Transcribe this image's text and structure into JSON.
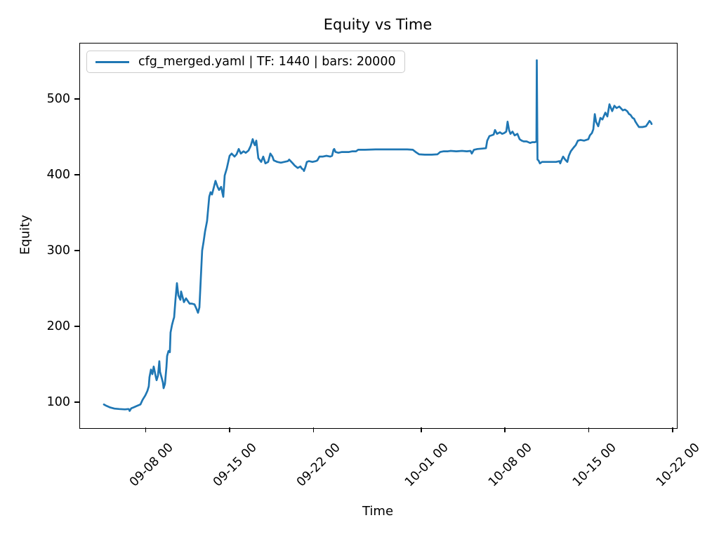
{
  "figure": {
    "title": "Equity vs Time",
    "xlabel": "Time",
    "ylabel": "Equity",
    "legend": {
      "label": "cfg_merged.yaml | TF: 1440 | bars: 20000"
    }
  },
  "chart_data": {
    "type": "line",
    "title": "Equity vs Time",
    "xlabel": "Time",
    "ylabel": "Equity",
    "grid": false,
    "legend_position": "upper left",
    "line_color": "#1f77b4",
    "x_units": "days (0 = first data point, approx 09-04 12:00)",
    "xlim": [
      -2.05,
      47.8
    ],
    "ylim": [
      66.7,
      574.1
    ],
    "x_ticks": [
      {
        "t": 3.5,
        "label": "09-08 00"
      },
      {
        "t": 10.5,
        "label": "09-15 00"
      },
      {
        "t": 17.5,
        "label": "09-22 00"
      },
      {
        "t": 26.5,
        "label": "10-01 00"
      },
      {
        "t": 33.5,
        "label": "10-08 00"
      },
      {
        "t": 40.5,
        "label": "10-15 00"
      },
      {
        "t": 47.5,
        "label": "10-22 00"
      }
    ],
    "y_ticks": [
      100,
      200,
      300,
      400,
      500
    ],
    "series": [
      {
        "name": "cfg_merged.yaml | TF: 1440 | bars: 20000",
        "color": "#1f77b4",
        "points": [
          [
            0.0,
            97
          ],
          [
            0.12,
            96
          ],
          [
            0.23,
            95
          ],
          [
            0.53,
            93
          ],
          [
            0.88,
            91.5
          ],
          [
            1.29,
            91
          ],
          [
            1.76,
            90.5
          ],
          [
            2.05,
            91
          ],
          [
            2.11,
            90.5
          ],
          [
            2.15,
            88.5
          ],
          [
            2.29,
            92
          ],
          [
            2.46,
            93
          ],
          [
            2.76,
            95
          ],
          [
            3.05,
            97
          ],
          [
            3.23,
            103
          ],
          [
            3.46,
            109
          ],
          [
            3.64,
            115
          ],
          [
            3.75,
            121
          ],
          [
            3.81,
            133
          ],
          [
            3.93,
            143
          ],
          [
            4.05,
            137
          ],
          [
            4.16,
            147
          ],
          [
            4.34,
            133
          ],
          [
            4.4,
            129
          ],
          [
            4.52,
            135
          ],
          [
            4.63,
            154
          ],
          [
            4.69,
            140
          ],
          [
            4.81,
            133
          ],
          [
            4.93,
            126
          ],
          [
            4.99,
            118.5
          ],
          [
            5.1,
            124
          ],
          [
            5.22,
            146
          ],
          [
            5.28,
            161
          ],
          [
            5.4,
            167.5
          ],
          [
            5.51,
            166
          ],
          [
            5.57,
            192
          ],
          [
            5.69,
            202
          ],
          [
            5.81,
            209
          ],
          [
            5.87,
            212
          ],
          [
            5.98,
            235
          ],
          [
            6.1,
            257
          ],
          [
            6.22,
            241
          ],
          [
            6.39,
            235
          ],
          [
            6.45,
            246
          ],
          [
            6.69,
            232
          ],
          [
            6.86,
            237
          ],
          [
            7.16,
            230
          ],
          [
            7.33,
            230
          ],
          [
            7.57,
            229
          ],
          [
            7.74,
            223
          ],
          [
            7.86,
            218
          ],
          [
            7.98,
            225
          ],
          [
            8.15,
            281
          ],
          [
            8.21,
            300
          ],
          [
            8.33,
            312
          ],
          [
            8.45,
            325
          ],
          [
            8.62,
            339
          ],
          [
            8.8,
            371
          ],
          [
            8.91,
            377
          ],
          [
            9.03,
            374
          ],
          [
            9.21,
            385
          ],
          [
            9.32,
            392
          ],
          [
            9.5,
            384
          ],
          [
            9.62,
            380
          ],
          [
            9.79,
            384
          ],
          [
            9.97,
            371
          ],
          [
            10.09,
            399
          ],
          [
            10.26,
            408
          ],
          [
            10.5,
            425
          ],
          [
            10.67,
            428
          ],
          [
            10.91,
            424
          ],
          [
            11.08,
            427
          ],
          [
            11.26,
            434
          ],
          [
            11.44,
            428
          ],
          [
            11.67,
            431
          ],
          [
            11.85,
            429
          ],
          [
            12.08,
            432
          ],
          [
            12.26,
            438
          ],
          [
            12.43,
            447
          ],
          [
            12.55,
            441
          ],
          [
            12.61,
            439
          ],
          [
            12.73,
            445
          ],
          [
            12.9,
            422
          ],
          [
            13.14,
            417
          ],
          [
            13.31,
            424
          ],
          [
            13.49,
            415
          ],
          [
            13.72,
            417
          ],
          [
            13.9,
            428
          ],
          [
            14.08,
            424
          ],
          [
            14.19,
            419
          ],
          [
            14.49,
            417
          ],
          [
            14.78,
            416
          ],
          [
            15.07,
            417
          ],
          [
            15.37,
            418
          ],
          [
            15.48,
            420
          ],
          [
            15.78,
            415
          ],
          [
            15.95,
            412
          ],
          [
            16.19,
            409
          ],
          [
            16.42,
            411
          ],
          [
            16.54,
            408
          ],
          [
            16.66,
            407
          ],
          [
            16.71,
            405
          ],
          [
            16.83,
            410
          ],
          [
            16.95,
            417
          ],
          [
            17.12,
            418
          ],
          [
            17.42,
            417
          ],
          [
            17.71,
            418
          ],
          [
            17.83,
            419
          ],
          [
            18.01,
            424
          ],
          [
            18.3,
            424
          ],
          [
            18.59,
            425
          ],
          [
            18.89,
            424
          ],
          [
            19.06,
            425
          ],
          [
            19.18,
            433
          ],
          [
            19.24,
            434
          ],
          [
            19.35,
            430
          ],
          [
            19.59,
            429
          ],
          [
            19.88,
            430
          ],
          [
            20.18,
            430
          ],
          [
            20.47,
            430
          ],
          [
            20.76,
            431
          ],
          [
            21.06,
            431
          ],
          [
            21.23,
            433
          ],
          [
            21.82,
            433
          ],
          [
            22.7,
            433.5
          ],
          [
            23.58,
            433.5
          ],
          [
            24.46,
            433.5
          ],
          [
            25.34,
            433.5
          ],
          [
            25.81,
            433
          ],
          [
            26.04,
            430
          ],
          [
            26.33,
            427
          ],
          [
            26.8,
            426.5
          ],
          [
            27.39,
            426.5
          ],
          [
            27.86,
            427
          ],
          [
            28.09,
            430
          ],
          [
            28.39,
            431
          ],
          [
            28.74,
            431
          ],
          [
            28.97,
            431.5
          ],
          [
            29.44,
            431
          ],
          [
            29.91,
            431.5
          ],
          [
            30.32,
            431
          ],
          [
            30.62,
            431.5
          ],
          [
            30.73,
            428
          ],
          [
            30.91,
            433
          ],
          [
            31.2,
            434
          ],
          [
            31.55,
            434.5
          ],
          [
            31.91,
            435
          ],
          [
            32.02,
            445
          ],
          [
            32.2,
            451
          ],
          [
            32.38,
            452
          ],
          [
            32.55,
            453
          ],
          [
            32.67,
            459
          ],
          [
            32.84,
            454
          ],
          [
            33.08,
            456
          ],
          [
            33.26,
            454
          ],
          [
            33.43,
            455
          ],
          [
            33.61,
            457
          ],
          [
            33.72,
            470
          ],
          [
            33.84,
            459
          ],
          [
            33.96,
            454
          ],
          [
            34.13,
            457
          ],
          [
            34.31,
            452
          ],
          [
            34.54,
            454
          ],
          [
            34.72,
            447
          ],
          [
            34.9,
            445
          ],
          [
            35.07,
            444
          ],
          [
            35.31,
            444
          ],
          [
            35.6,
            442
          ],
          [
            35.78,
            443
          ],
          [
            36.01,
            443
          ],
          [
            36.13,
            444
          ],
          [
            36.16,
            551
          ],
          [
            36.22,
            420
          ],
          [
            36.3,
            419
          ],
          [
            36.42,
            415
          ],
          [
            36.6,
            417
          ],
          [
            36.95,
            417
          ],
          [
            37.36,
            417
          ],
          [
            37.77,
            417
          ],
          [
            38.06,
            418
          ],
          [
            38.12,
            415
          ],
          [
            38.24,
            420
          ],
          [
            38.36,
            424
          ],
          [
            38.53,
            420
          ],
          [
            38.71,
            417
          ],
          [
            38.83,
            425
          ],
          [
            39.0,
            431
          ],
          [
            39.24,
            436
          ],
          [
            39.41,
            439
          ],
          [
            39.59,
            445
          ],
          [
            39.82,
            446
          ],
          [
            40.12,
            445
          ],
          [
            40.47,
            447
          ],
          [
            40.59,
            452
          ],
          [
            40.76,
            455
          ],
          [
            40.88,
            460
          ],
          [
            41.0,
            480
          ],
          [
            41.11,
            470
          ],
          [
            41.29,
            464
          ],
          [
            41.47,
            475
          ],
          [
            41.64,
            473
          ],
          [
            41.88,
            482
          ],
          [
            42.05,
            477
          ],
          [
            42.23,
            493
          ],
          [
            42.35,
            488
          ],
          [
            42.46,
            484
          ],
          [
            42.64,
            491
          ],
          [
            42.82,
            488
          ],
          [
            43.05,
            490
          ],
          [
            43.34,
            485
          ],
          [
            43.52,
            486
          ],
          [
            43.7,
            484
          ],
          [
            43.87,
            480
          ],
          [
            43.99,
            479
          ],
          [
            44.16,
            475
          ],
          [
            44.28,
            474
          ],
          [
            44.4,
            470
          ],
          [
            44.52,
            467
          ],
          [
            44.69,
            463
          ],
          [
            44.99,
            463
          ],
          [
            45.28,
            464
          ],
          [
            45.45,
            468
          ],
          [
            45.57,
            471
          ],
          [
            45.69,
            469
          ],
          [
            45.75,
            467
          ]
        ]
      }
    ]
  }
}
